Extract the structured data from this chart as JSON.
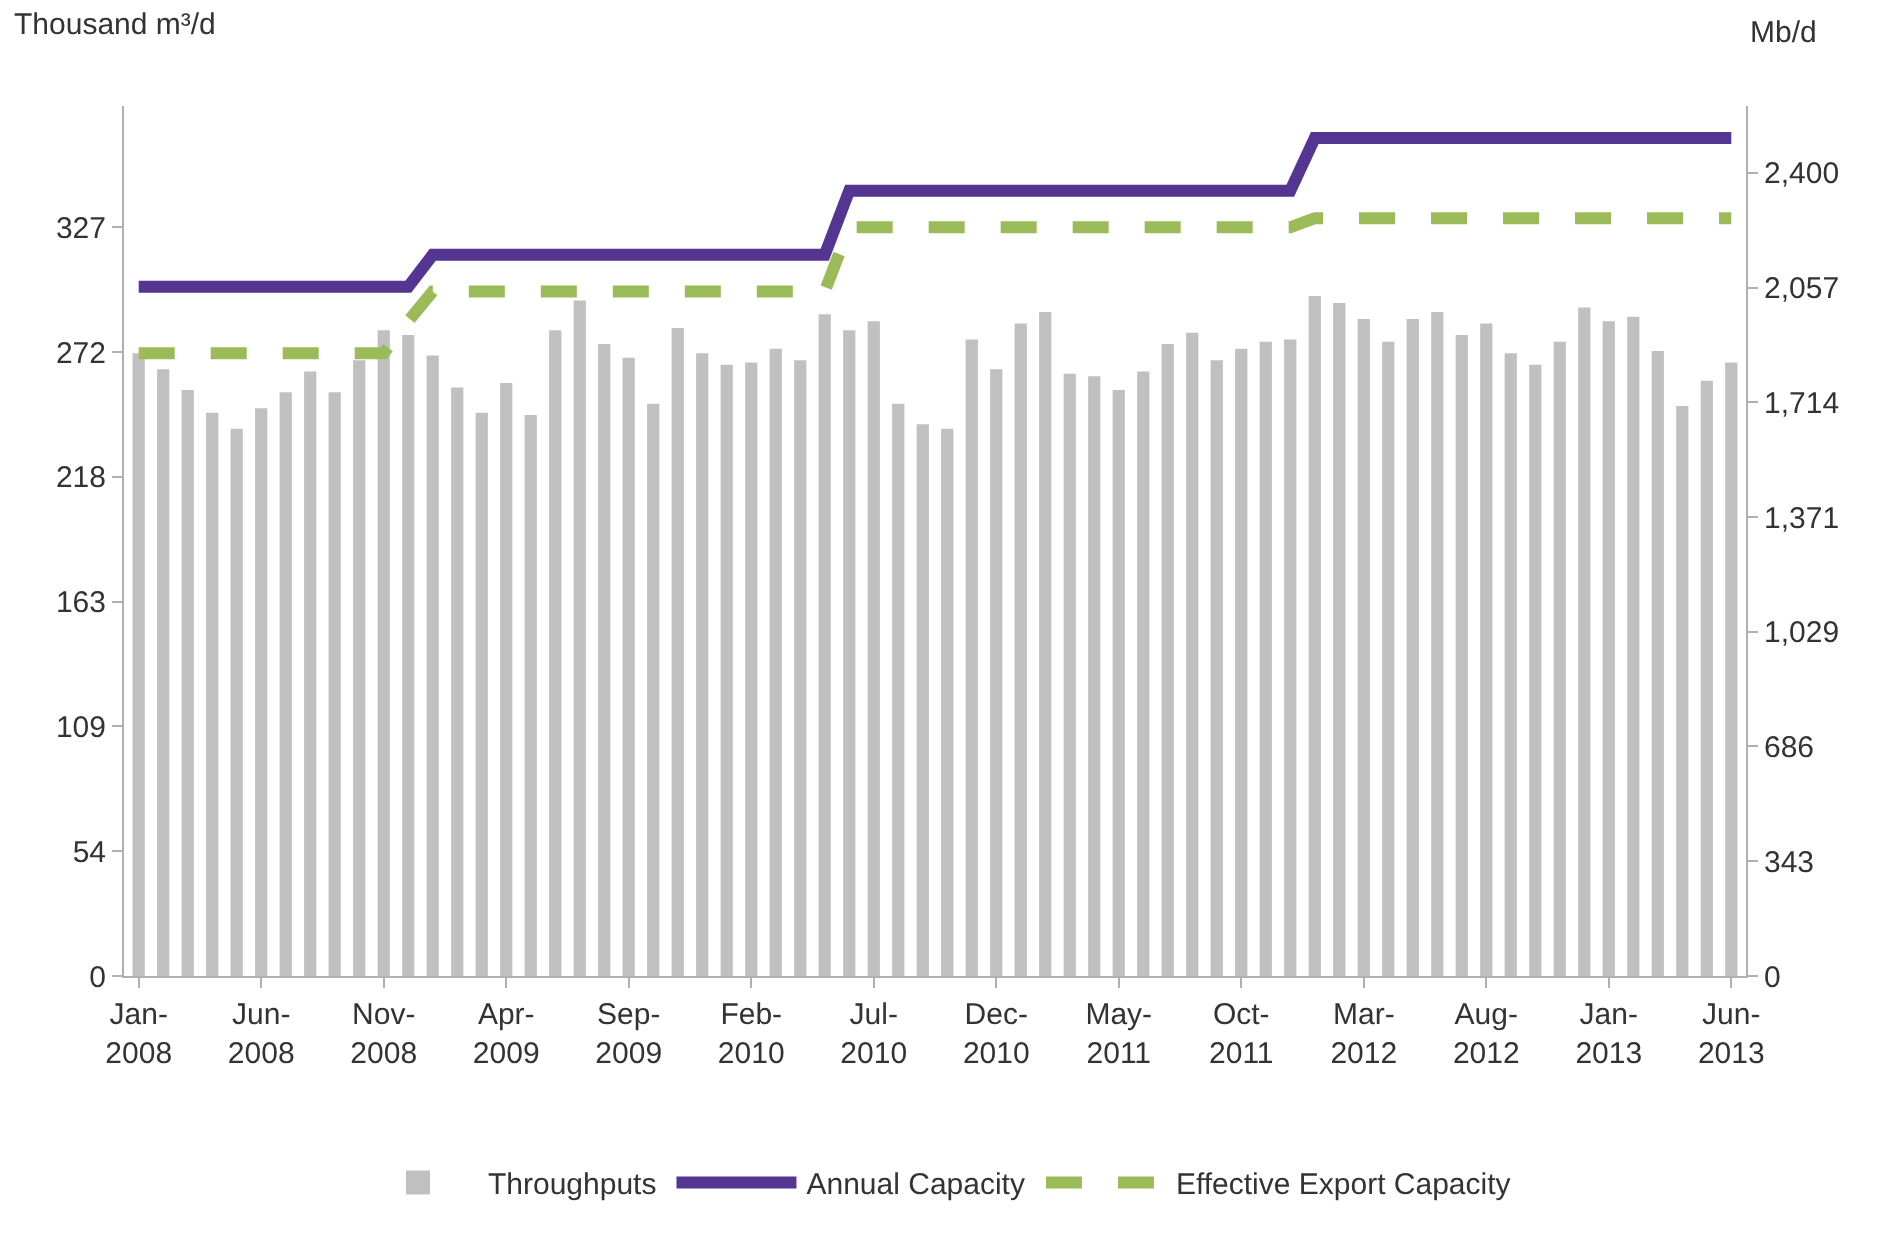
{
  "chart_data": {
    "type": "bar",
    "ylabel": "Thousand m³/d",
    "y2label": "Mb/d",
    "categories": [
      "Jan-2008",
      null,
      null,
      null,
      null,
      "Jun-2008",
      null,
      null,
      null,
      null,
      "Nov-2008",
      null,
      null,
      null,
      null,
      "Apr-2009",
      null,
      null,
      null,
      null,
      "Sep-2009",
      null,
      null,
      null,
      null,
      "Feb-2010",
      null,
      null,
      null,
      null,
      "Jul-2010",
      null,
      null,
      null,
      null,
      "Dec-2010",
      null,
      null,
      null,
      null,
      "May-2011",
      null,
      null,
      null,
      null,
      "Oct-2011",
      null,
      null,
      null,
      null,
      "Mar-2012",
      null,
      null,
      null,
      null,
      "Aug-2012",
      null,
      null,
      null,
      null,
      "Jan-2013",
      null,
      null,
      null,
      null,
      "Jun-2013"
    ],
    "series": [
      {
        "name": "Throughputs",
        "color": "#c0c0c0",
        "values": [
          272,
          265,
          256,
          246,
          239,
          248,
          255,
          264,
          255,
          269,
          282,
          280,
          271,
          257,
          246,
          259,
          245,
          282,
          295,
          276,
          270,
          250,
          283,
          272,
          267,
          268,
          274,
          269,
          289,
          282,
          286,
          250,
          241,
          239,
          278,
          265,
          285,
          290,
          263,
          262,
          256,
          264,
          276,
          281,
          269,
          274,
          277,
          278,
          297,
          294,
          287,
          277,
          287,
          290,
          280,
          285,
          272,
          267,
          277,
          292,
          286,
          288,
          273,
          249,
          260,
          268
        ]
      },
      {
        "name": "Annual Capacity",
        "type": "line",
        "color": "#553592",
        "line_style": "solid",
        "values": [
          301,
          301,
          301,
          301,
          301,
          301,
          301,
          301,
          301,
          301,
          301,
          301,
          315,
          315,
          315,
          315,
          315,
          315,
          315,
          315,
          315,
          315,
          315,
          315,
          315,
          315,
          315,
          315,
          315,
          343,
          343,
          343,
          343,
          343,
          343,
          343,
          343,
          343,
          343,
          343,
          343,
          343,
          343,
          343,
          343,
          343,
          343,
          343,
          366,
          366,
          366,
          366,
          366,
          366,
          366,
          366,
          366,
          366,
          366,
          366,
          366,
          366,
          366,
          366,
          366,
          366
        ]
      },
      {
        "name": "Effective Export Capacity",
        "type": "line",
        "color": "#9bbb59",
        "line_style": "dashed",
        "values": [
          272,
          272,
          272,
          272,
          272,
          272,
          272,
          272,
          272,
          272,
          272,
          286,
          299,
          299,
          299,
          299,
          299,
          299,
          299,
          299,
          299,
          299,
          299,
          299,
          299,
          299,
          299,
          299,
          299,
          327,
          327,
          327,
          327,
          327,
          327,
          327,
          327,
          327,
          327,
          327,
          327,
          327,
          327,
          327,
          327,
          327,
          327,
          327,
          331,
          331,
          331,
          331,
          331,
          331,
          331,
          331,
          331,
          331,
          331,
          331,
          331,
          331,
          331,
          331,
          331,
          331
        ]
      }
    ],
    "ylim": [
      0,
      380
    ],
    "yticks": [
      0,
      {
        "value": 54.5,
        "label": "54"
      },
      109,
      {
        "value": 163.5,
        "label": "163"
      },
      218,
      {
        "value": 272.5,
        "label": "272"
      },
      327
    ],
    "y2lim": [
      0,
      2600
    ],
    "y2ticks": [
      0,
      343,
      686,
      {
        "value": 1029,
        "label": "1,029"
      },
      {
        "value": 1371,
        "label": "1,371"
      },
      {
        "value": 1714,
        "label": "1,714"
      },
      {
        "value": 2057,
        "label": "2,057"
      },
      {
        "value": 2400,
        "label": "2,400"
      }
    ],
    "legend": "bottom",
    "marker": "none"
  }
}
